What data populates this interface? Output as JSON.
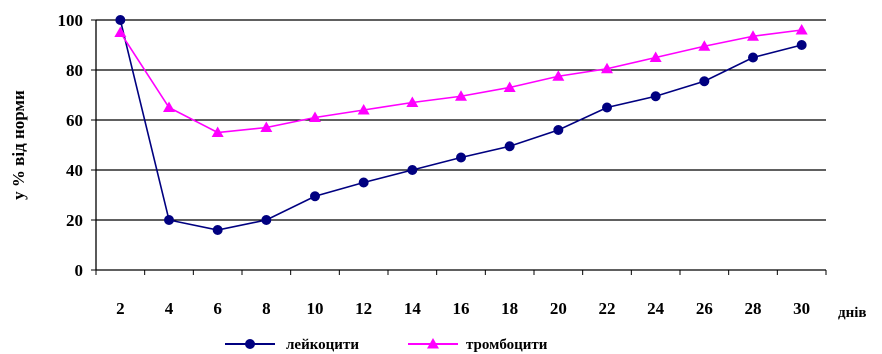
{
  "chart_data": {
    "type": "line",
    "categories": [
      "2",
      "4",
      "6",
      "8",
      "10",
      "12",
      "14",
      "16",
      "18",
      "20",
      "22",
      "24",
      "26",
      "28",
      "30"
    ],
    "x_unit_label": "днів",
    "ylabel": "у % від норми",
    "ylim": [
      0,
      100
    ],
    "yticks": [
      "0",
      "20",
      "40",
      "60",
      "80",
      "100"
    ],
    "grid": "horizontal",
    "legend_position": "bottom",
    "series": [
      {
        "name": "лейкоцити",
        "color": "#000080",
        "marker": "circle",
        "values": [
          100,
          20,
          16,
          20,
          29.5,
          35,
          40,
          45,
          49.5,
          56,
          65,
          69.5,
          75.5,
          85,
          90
        ]
      },
      {
        "name": "тромбоцити",
        "color": "#FF00FF",
        "marker": "triangle",
        "values": [
          95,
          65,
          55,
          57,
          61,
          64,
          67,
          69.5,
          73,
          77.5,
          80.5,
          85,
          89.5,
          93.5,
          96
        ]
      }
    ]
  }
}
